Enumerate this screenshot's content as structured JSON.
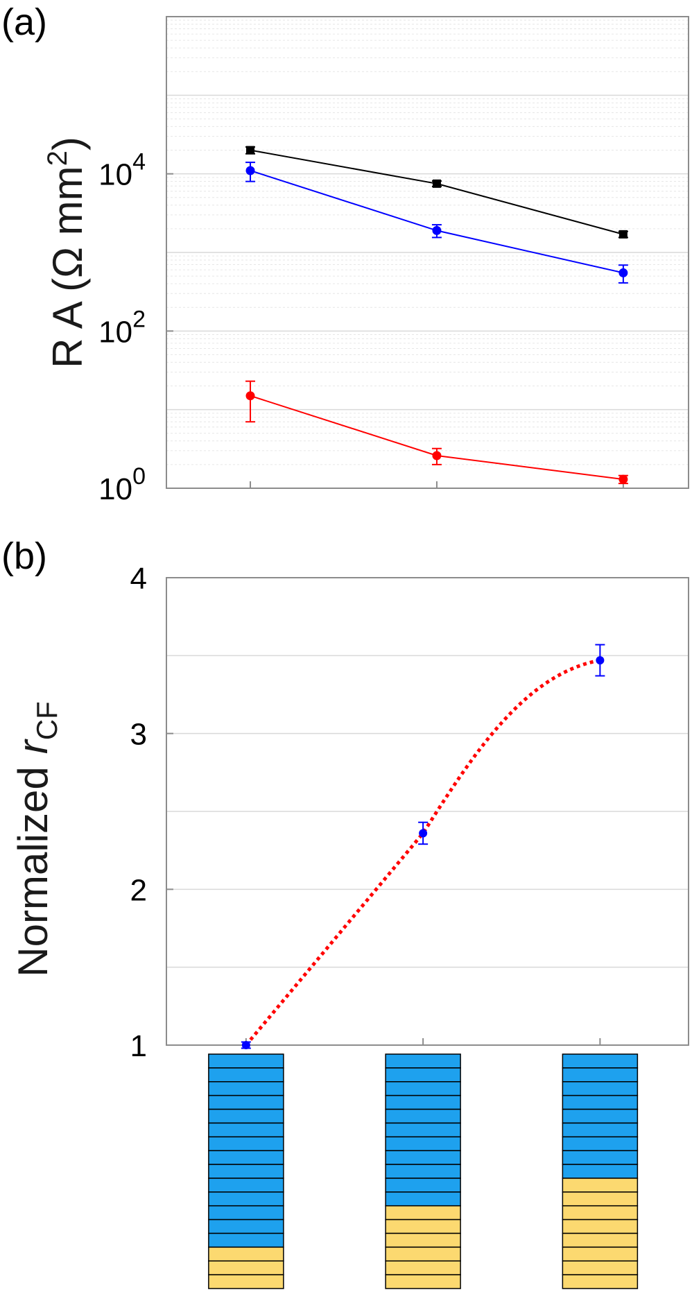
{
  "panel_a": {
    "label": "(a)"
  },
  "panel_b": {
    "label": "(b)"
  },
  "chart_data": [
    {
      "type": "line",
      "ylabel": "R A (Ω mm²)",
      "yscale": "log",
      "ylim": [
        1,
        1000000
      ],
      "ytick_labels": [
        {
          "value": 1,
          "base": "10",
          "exp": "0"
        },
        {
          "value": 100,
          "base": "10",
          "exp": "2"
        },
        {
          "value": 10000,
          "base": "10",
          "exp": "4"
        }
      ],
      "x": [
        1,
        2,
        3
      ],
      "xlim": [
        0.55,
        3.35
      ],
      "grid": true,
      "series": [
        {
          "color": "#000000",
          "values": [
            20000,
            7500,
            1700
          ],
          "errors": [
            2000,
            600,
            150
          ]
        },
        {
          "color": "#0000ff",
          "values": [
            11000,
            1900,
            550
          ],
          "errors": [
            3000,
            350,
            140
          ]
        },
        {
          "color": "#ff0000",
          "values": [
            15,
            2.6,
            1.3
          ],
          "errors": [
            8,
            0.6,
            0.15
          ]
        }
      ]
    },
    {
      "type": "line",
      "ylabel": "Normalized r_CF",
      "ylabel_parts": {
        "text": "Normalized",
        "italic": "r",
        "subscript": "CF"
      },
      "ylim": [
        1,
        4
      ],
      "yticks": [
        1,
        2,
        3,
        4
      ],
      "ytick_labels": [
        "1",
        "2",
        "3",
        "4"
      ],
      "x": [
        1,
        2,
        3
      ],
      "xlim": [
        0.55,
        3.5
      ],
      "grid": true,
      "series": [
        {
          "color": "#0000ff",
          "line_color": "#ff0000",
          "line_style": "dotted",
          "values": [
            1.0,
            2.36,
            3.47
          ],
          "errors": [
            0.02,
            0.07,
            0.1
          ]
        }
      ]
    }
  ],
  "layer_stacks": {
    "colors": {
      "blue": "#1ea1ee",
      "yellow": "#fcd970",
      "border": "#000000"
    },
    "stacks": [
      {
        "blue_layers": 14,
        "yellow_layers": 3
      },
      {
        "blue_layers": 11,
        "yellow_layers": 6
      },
      {
        "blue_layers": 9,
        "yellow_layers": 8
      }
    ]
  }
}
